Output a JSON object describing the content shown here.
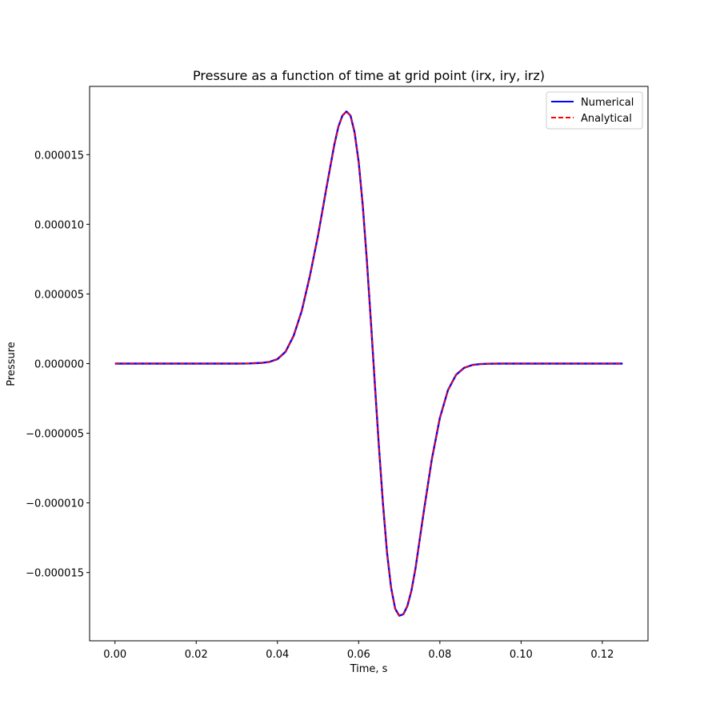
{
  "chart_data": {
    "type": "line",
    "title": "Pressure as a function of time at grid point (irx, iry, irz)",
    "xlabel": "Time, s",
    "ylabel": "Pressure",
    "xlim": [
      -0.00625,
      0.13125
    ],
    "ylim": [
      -1.99e-05,
      1.99e-05
    ],
    "xticks": [
      0.0,
      0.02,
      0.04,
      0.06,
      0.08,
      0.1,
      0.12
    ],
    "xtick_labels": [
      "0.00",
      "0.02",
      "0.04",
      "0.06",
      "0.08",
      "0.10",
      "0.12"
    ],
    "yticks": [
      -1.5e-05,
      -1e-05,
      -5e-06,
      0.0,
      5e-06,
      1e-05,
      1.5e-05
    ],
    "ytick_labels": [
      "−0.000015",
      "−0.000010",
      "−0.000005",
      "0.000000",
      "0.000005",
      "0.000010",
      "0.000015"
    ],
    "grid": false,
    "legend_position": "upper right",
    "x": [
      0.0,
      0.005,
      0.01,
      0.015,
      0.02,
      0.025,
      0.03,
      0.033,
      0.036,
      0.038,
      0.04,
      0.042,
      0.044,
      0.046,
      0.048,
      0.05,
      0.052,
      0.054,
      0.055,
      0.056,
      0.057,
      0.058,
      0.059,
      0.06,
      0.061,
      0.062,
      0.063,
      0.064,
      0.065,
      0.066,
      0.067,
      0.068,
      0.069,
      0.07,
      0.071,
      0.072,
      0.073,
      0.074,
      0.075,
      0.076,
      0.078,
      0.08,
      0.082,
      0.084,
      0.086,
      0.088,
      0.09,
      0.092,
      0.095,
      0.1,
      0.105,
      0.11,
      0.115,
      0.12,
      0.125
    ],
    "series": [
      {
        "name": "Numerical",
        "color": "#0000ff",
        "style": "solid",
        "values": [
          0,
          0,
          0,
          0,
          0,
          0,
          0,
          1e-08,
          5e-08,
          1.2e-07,
          3.2e-07,
          8.5e-07,
          2e-06,
          3.8e-06,
          6.3e-06,
          9.2e-06,
          1.25e-05,
          1.57e-05,
          1.7e-05,
          1.78e-05,
          1.81e-05,
          1.78e-05,
          1.66e-05,
          1.45e-05,
          1.14e-05,
          7.5e-06,
          3.1e-06,
          -1.5e-06,
          -6e-06,
          -1.01e-05,
          -1.36e-05,
          -1.61e-05,
          -1.76e-05,
          -1.81e-05,
          -1.8e-05,
          -1.74e-05,
          -1.63e-05,
          -1.47e-05,
          -1.27e-05,
          -1.07e-05,
          -6.9e-06,
          -3.9e-06,
          -1.9e-06,
          -8e-07,
          -3e-07,
          -1e-07,
          -3e-08,
          -1e-08,
          0,
          0,
          0,
          0,
          0,
          0,
          0
        ]
      },
      {
        "name": "Analytical",
        "color": "#ff0000",
        "style": "dashed",
        "values": [
          0,
          0,
          0,
          0,
          0,
          0,
          0,
          1e-08,
          5e-08,
          1.2e-07,
          3.2e-07,
          8.5e-07,
          2e-06,
          3.8e-06,
          6.3e-06,
          9.2e-06,
          1.25e-05,
          1.57e-05,
          1.7e-05,
          1.78e-05,
          1.81e-05,
          1.78e-05,
          1.66e-05,
          1.45e-05,
          1.14e-05,
          7.5e-06,
          3.1e-06,
          -1.5e-06,
          -6e-06,
          -1.01e-05,
          -1.36e-05,
          -1.61e-05,
          -1.76e-05,
          -1.81e-05,
          -1.8e-05,
          -1.74e-05,
          -1.63e-05,
          -1.47e-05,
          -1.27e-05,
          -1.07e-05,
          -6.9e-06,
          -3.9e-06,
          -1.9e-06,
          -8e-07,
          -3e-07,
          -1e-07,
          -3e-08,
          -1e-08,
          0,
          0,
          0,
          0,
          0,
          0,
          0
        ]
      }
    ]
  }
}
